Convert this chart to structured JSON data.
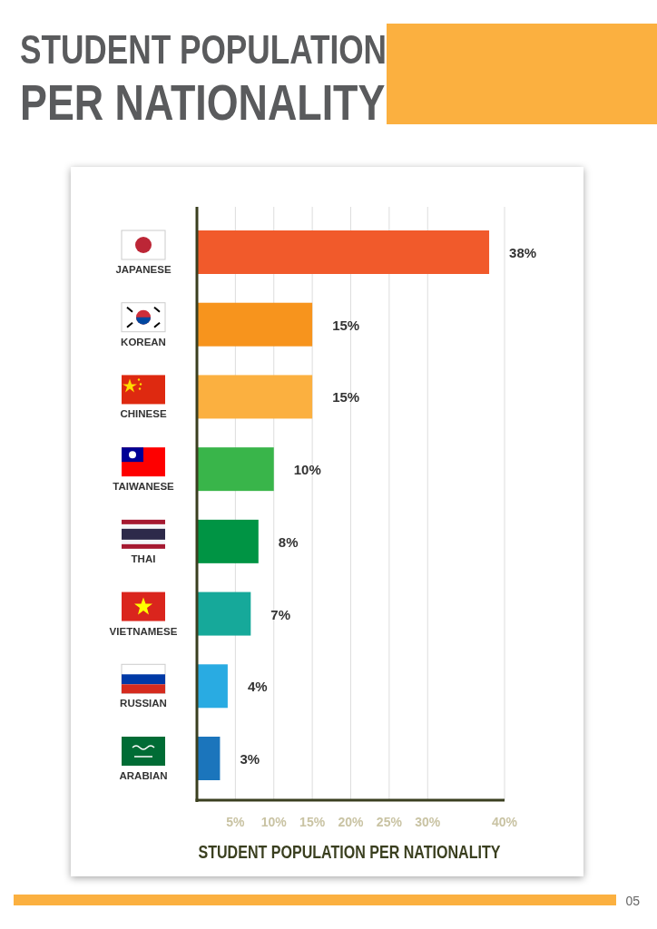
{
  "chart_data": {
    "type": "bar",
    "orientation": "horizontal",
    "title": "STUDENT POPULATION PER NATIONALITY",
    "xlabel": "STUDENT POPULATION PER NATIONALITY",
    "categories": [
      "JAPANESE",
      "KOREAN",
      "CHINESE",
      "TAIWANESE",
      "THAI",
      "VIETNAMESE",
      "RUSSIAN",
      "ARABIAN"
    ],
    "values": [
      38,
      15,
      15,
      10,
      8,
      7,
      4,
      3
    ],
    "colors": [
      "#f15a2b",
      "#f7941d",
      "#fbb040",
      "#39b54a",
      "#009444",
      "#16a99a",
      "#29abe2",
      "#1b75bc"
    ],
    "value_labels": [
      "38%",
      "15%",
      "15%",
      "10%",
      "8%",
      "7%",
      "4%",
      "3%"
    ],
    "xlim": [
      0,
      40
    ],
    "xticks": [
      {
        "value": 5,
        "label": "5%"
      },
      {
        "value": 10,
        "label": "10%"
      },
      {
        "value": 15,
        "label": "15%"
      },
      {
        "value": 20,
        "label": "20%"
      },
      {
        "value": 25,
        "label": "25%"
      },
      {
        "value": 30,
        "label": "30%"
      },
      {
        "value": 40,
        "label": "40%"
      }
    ],
    "grid": "x",
    "annotations": [
      "05"
    ]
  }
}
